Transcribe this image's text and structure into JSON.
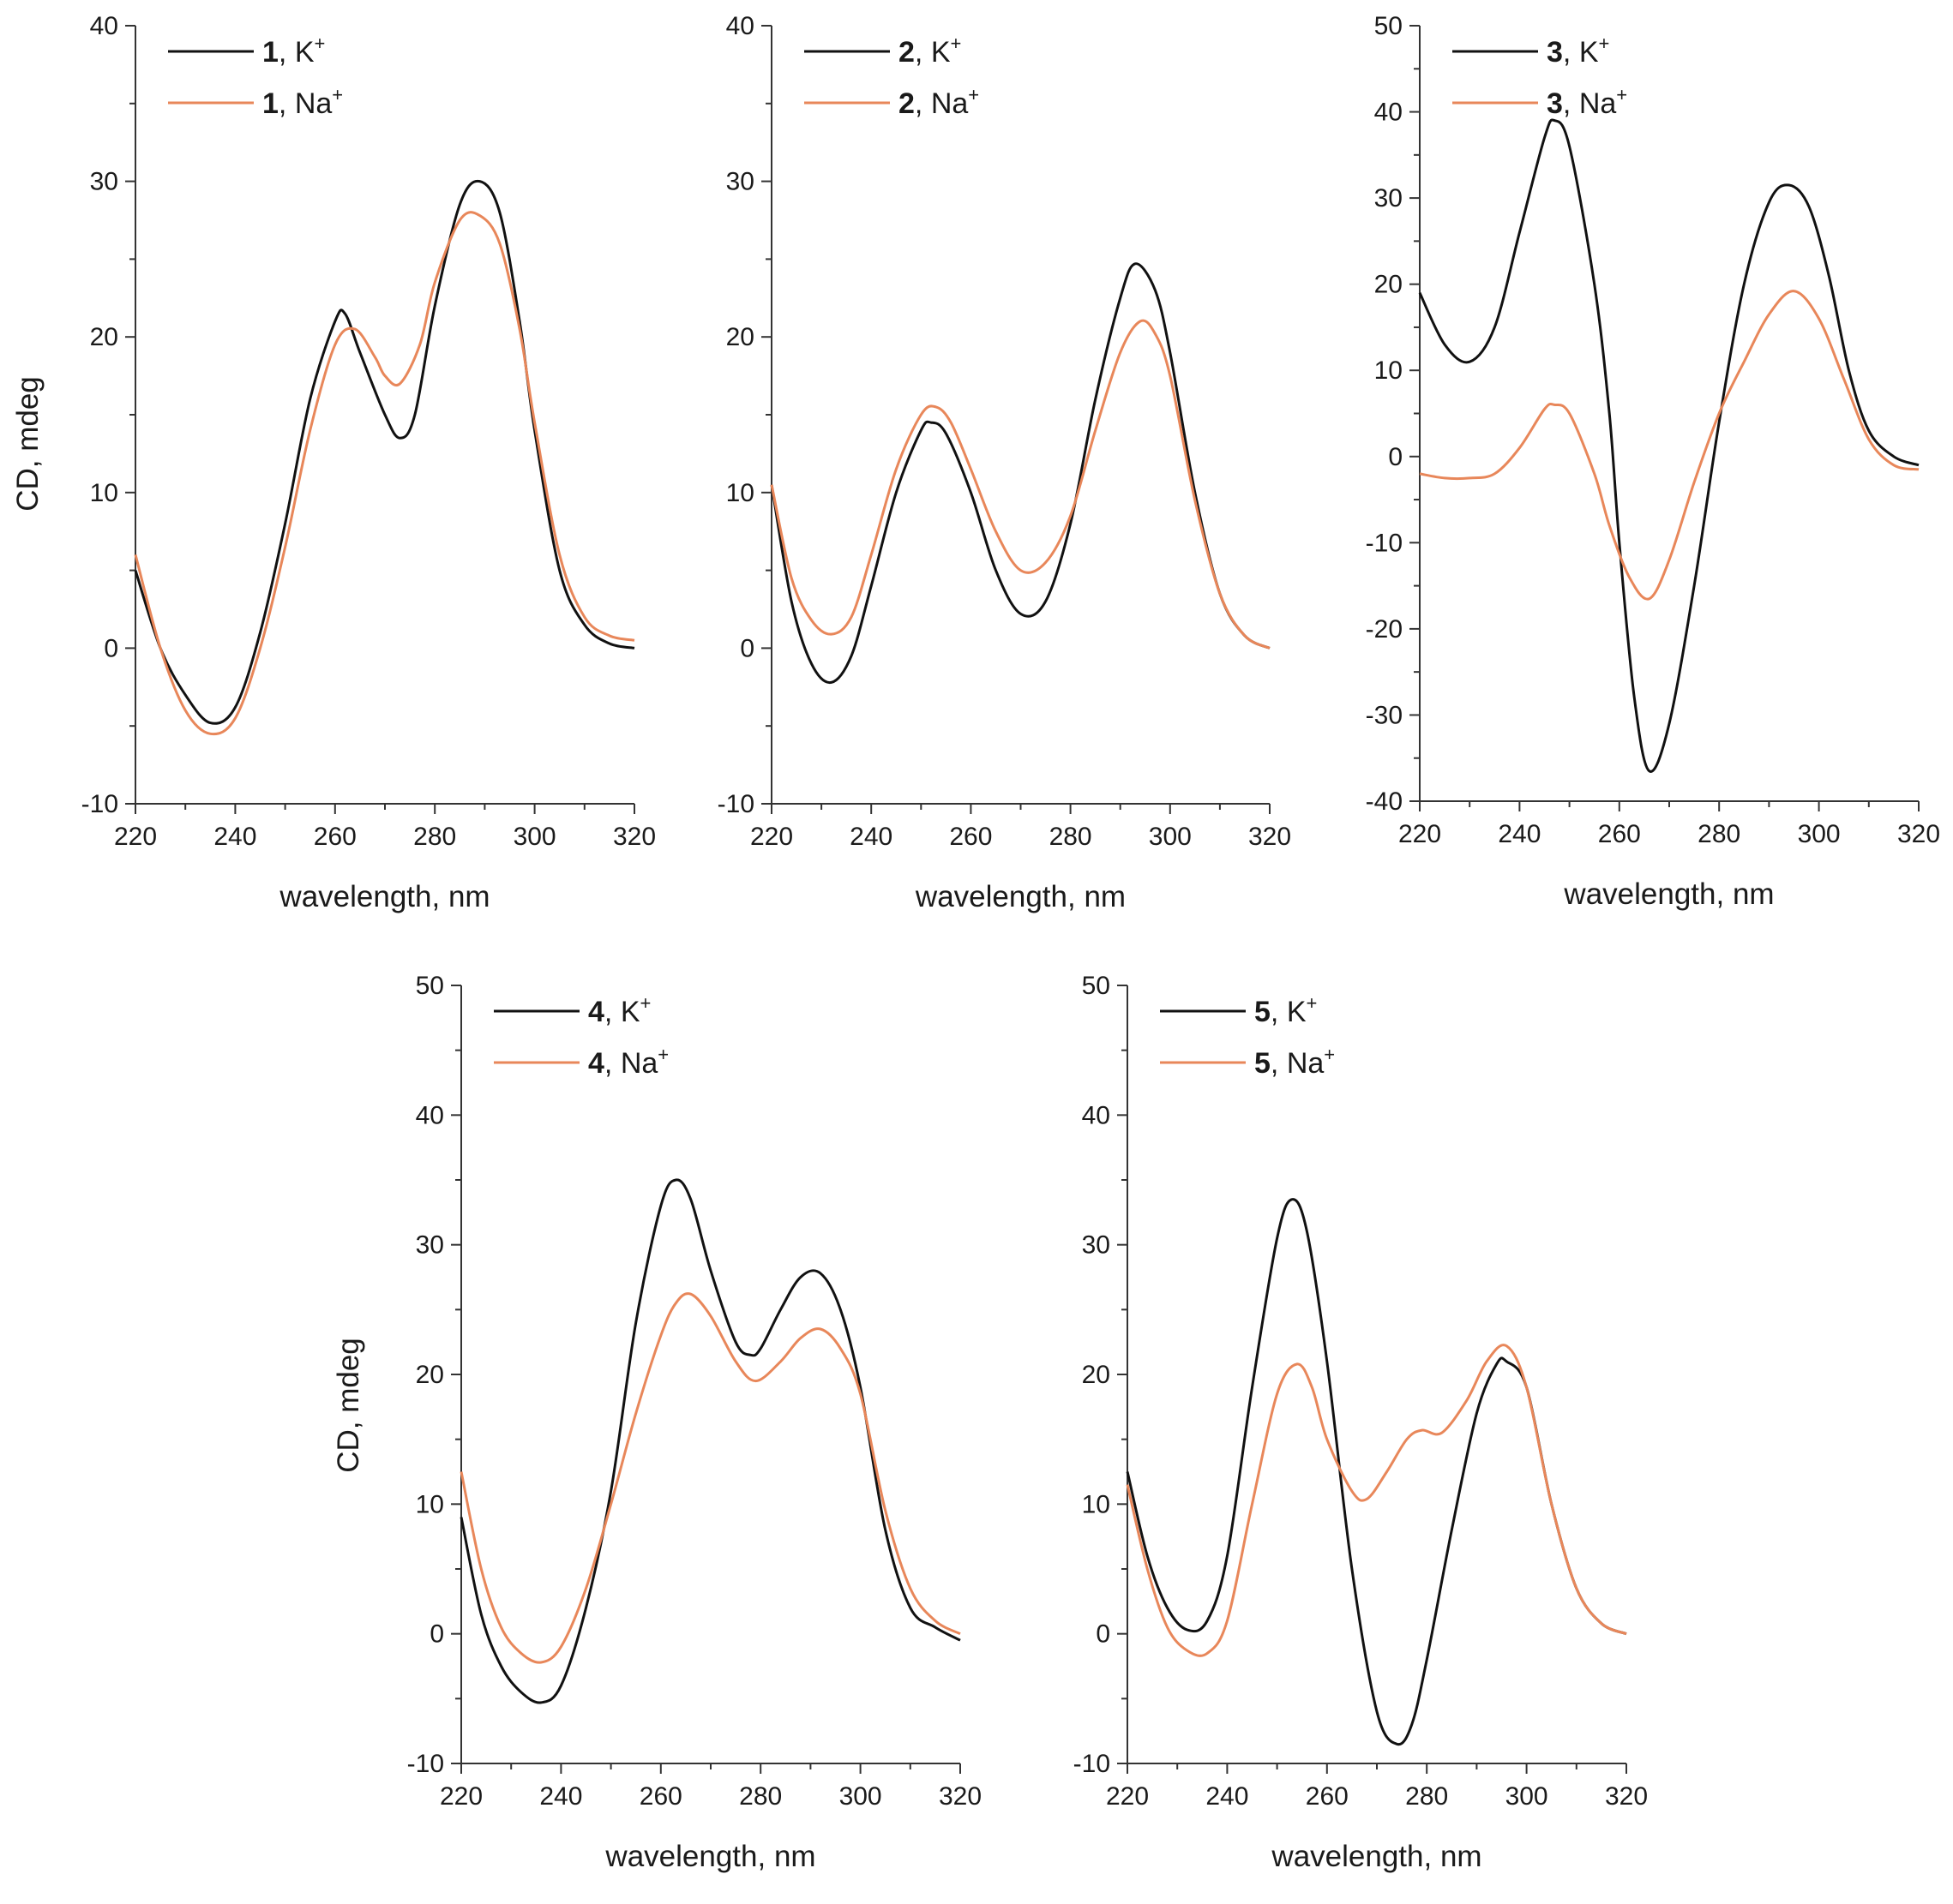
{
  "colors": {
    "k": "#111111",
    "na": "#e8875a",
    "axis": "#333333"
  },
  "chart_data": [
    {
      "type": "line",
      "xlabel": "wavelength, nm",
      "ylabel": "CD, mdeg",
      "xlim": [
        220,
        320
      ],
      "ylim": [
        -10,
        40
      ],
      "xticks": [
        220,
        240,
        260,
        280,
        300,
        320
      ],
      "yticks": [
        -10,
        0,
        10,
        20,
        30,
        40
      ],
      "legend_placement": "top-left",
      "series": [
        {
          "name": "K+",
          "compound": "1",
          "ion": "K",
          "charge": "+",
          "color_key": "k",
          "x": [
            220,
            225,
            230,
            235,
            240,
            245,
            250,
            255,
            260,
            262,
            265,
            270,
            273,
            276,
            280,
            285,
            289,
            293,
            297,
            300,
            305,
            310,
            315,
            320
          ],
          "y": [
            5,
            0,
            -3,
            -4.8,
            -3.8,
            1,
            8,
            16,
            21,
            21.5,
            19,
            15,
            13.5,
            15,
            22,
            28.5,
            30,
            28,
            21,
            14,
            5,
            1.5,
            0.3,
            0
          ]
        },
        {
          "name": "Na+",
          "compound": "1",
          "ion": "Na",
          "charge": "+",
          "color_key": "na",
          "x": [
            220,
            225,
            230,
            235,
            240,
            245,
            250,
            255,
            260,
            264,
            268,
            270,
            273,
            277,
            280,
            285,
            289,
            293,
            297,
            300,
            305,
            310,
            315,
            320
          ],
          "y": [
            6,
            0,
            -4,
            -5.5,
            -4.5,
            0,
            6.5,
            14,
            19.5,
            20.5,
            18.7,
            17.5,
            17,
            19.5,
            23.5,
            27.5,
            27.8,
            26,
            20.5,
            14.5,
            6,
            2,
            0.8,
            0.5
          ]
        }
      ]
    },
    {
      "type": "line",
      "xlabel": "wavelength, nm",
      "ylabel": "",
      "xlim": [
        220,
        320
      ],
      "ylim": [
        -10,
        40
      ],
      "xticks": [
        220,
        240,
        260,
        280,
        300,
        320
      ],
      "yticks": [
        -10,
        0,
        10,
        20,
        30,
        40
      ],
      "legend_placement": "top-left",
      "series": [
        {
          "name": "K+",
          "compound": "2",
          "ion": "K",
          "charge": "+",
          "color_key": "k",
          "x": [
            220,
            224,
            228,
            232,
            236,
            240,
            245,
            250,
            252,
            255,
            260,
            265,
            270,
            275,
            280,
            285,
            290,
            293,
            297,
            300,
            305,
            310,
            315,
            320
          ],
          "y": [
            10.5,
            3,
            -1,
            -2.2,
            -0.5,
            4,
            10,
            14,
            14.5,
            13.8,
            10,
            5,
            2.2,
            3,
            8,
            16,
            22.5,
            24.7,
            23,
            19,
            10,
            3.5,
            0.8,
            0
          ]
        },
        {
          "name": "Na+",
          "compound": "2",
          "ion": "Na",
          "charge": "+",
          "color_key": "na",
          "x": [
            220,
            224,
            228,
            232,
            236,
            240,
            245,
            250,
            253,
            256,
            260,
            265,
            270,
            275,
            280,
            285,
            290,
            294,
            297,
            300,
            305,
            310,
            315,
            320
          ],
          "y": [
            10.5,
            4.5,
            1.8,
            0.9,
            2,
            6,
            11.5,
            15,
            15.5,
            14.5,
            11.5,
            7.5,
            5,
            5.5,
            8.5,
            14,
            19,
            21,
            20.2,
            17.5,
            9.5,
            3.5,
            0.8,
            0
          ]
        }
      ]
    },
    {
      "type": "line",
      "xlabel": "wavelength, nm",
      "ylabel": "",
      "xlim": [
        220,
        320
      ],
      "ylim": [
        -40,
        50
      ],
      "xticks": [
        220,
        240,
        260,
        280,
        300,
        320
      ],
      "yticks": [
        -40,
        -30,
        -20,
        -10,
        0,
        10,
        20,
        30,
        40,
        50
      ],
      "legend_placement": "top-left",
      "series": [
        {
          "name": "K+",
          "compound": "3",
          "ion": "K",
          "charge": "+",
          "color_key": "k",
          "x": [
            220,
            225,
            230,
            235,
            240,
            245,
            247,
            250,
            255,
            258,
            260,
            263,
            266,
            270,
            275,
            280,
            285,
            290,
            294,
            298,
            302,
            306,
            310,
            315,
            320
          ],
          "y": [
            19,
            13,
            11,
            15,
            26,
            37,
            39,
            36,
            20,
            5,
            -10,
            -28,
            -36.5,
            -31,
            -15,
            4,
            20,
            29.5,
            31.5,
            29,
            21,
            10,
            3,
            0,
            -1
          ]
        },
        {
          "name": "Na+",
          "compound": "3",
          "ion": "Na",
          "charge": "+",
          "color_key": "na",
          "x": [
            220,
            225,
            230,
            235,
            240,
            245,
            247,
            250,
            255,
            258,
            262,
            266,
            270,
            275,
            280,
            285,
            290,
            295,
            300,
            305,
            310,
            315,
            320
          ],
          "y": [
            -2,
            -2.5,
            -2.5,
            -2,
            1,
            5.5,
            6,
            5,
            -2,
            -8,
            -14,
            -16.5,
            -12,
            -3,
            5,
            11,
            16.5,
            19.2,
            16,
            9,
            2,
            -1,
            -1.5
          ]
        }
      ]
    },
    {
      "type": "line",
      "xlabel": "wavelength, nm",
      "ylabel": "CD, mdeg",
      "xlim": [
        220,
        320
      ],
      "ylim": [
        -10,
        50
      ],
      "xticks": [
        220,
        240,
        260,
        280,
        300,
        320
      ],
      "yticks": [
        -10,
        0,
        10,
        20,
        30,
        40,
        50
      ],
      "legend_placement": "top-left",
      "series": [
        {
          "name": "K+",
          "compound": "4",
          "ion": "K",
          "charge": "+",
          "color_key": "k",
          "x": [
            220,
            224,
            228,
            232,
            236,
            240,
            245,
            250,
            255,
            260,
            263,
            266,
            270,
            275,
            278,
            280,
            284,
            288,
            292,
            296,
            300,
            305,
            310,
            315,
            320
          ],
          "y": [
            9,
            1.5,
            -2.5,
            -4.5,
            -5.3,
            -4,
            2,
            11,
            24,
            33,
            35,
            33.5,
            28,
            22.5,
            21.5,
            22,
            25,
            27.5,
            27.8,
            25,
            19,
            8,
            2,
            0.5,
            -0.5
          ]
        },
        {
          "name": "Na+",
          "compound": "4",
          "ion": "Na",
          "charge": "+",
          "color_key": "na",
          "x": [
            220,
            224,
            228,
            232,
            236,
            240,
            245,
            250,
            255,
            260,
            263,
            266,
            270,
            275,
            279,
            284,
            288,
            292,
            296,
            300,
            305,
            310,
            315,
            320
          ],
          "y": [
            12.5,
            5,
            0.5,
            -1.5,
            -2.2,
            -1,
            3.5,
            10,
            17,
            23,
            25.5,
            26.2,
            24.5,
            21,
            19.5,
            21,
            22.8,
            23.5,
            22,
            18.5,
            9.5,
            3.5,
            1,
            0
          ]
        }
      ]
    },
    {
      "type": "line",
      "xlabel": "wavelength, nm",
      "ylabel": "",
      "xlim": [
        220,
        320
      ],
      "ylim": [
        -10,
        50
      ],
      "xticks": [
        220,
        240,
        260,
        280,
        300,
        320
      ],
      "yticks": [
        -10,
        0,
        10,
        20,
        30,
        40,
        50
      ],
      "legend_placement": "top-left",
      "series": [
        {
          "name": "K+",
          "compound": "5",
          "ion": "K",
          "charge": "+",
          "color_key": "k",
          "x": [
            220,
            224,
            228,
            232,
            236,
            240,
            245,
            250,
            253,
            256,
            260,
            265,
            270,
            274,
            277,
            280,
            285,
            290,
            294,
            296,
            300,
            305,
            310,
            315,
            320
          ],
          "y": [
            12.5,
            6,
            2,
            0.3,
            1,
            6,
            19,
            30.5,
            33.5,
            31,
            21,
            5,
            -6,
            -8.5,
            -7,
            -2,
            8,
            17,
            20.8,
            21,
            19,
            10,
            3.5,
            0.8,
            0
          ]
        },
        {
          "name": "Na+",
          "compound": "5",
          "ion": "Na",
          "charge": "+",
          "color_key": "na",
          "x": [
            220,
            224,
            228,
            232,
            236,
            240,
            245,
            250,
            254,
            257,
            260,
            265,
            268,
            272,
            276,
            279,
            283,
            288,
            292,
            296,
            300,
            305,
            310,
            315,
            320
          ],
          "y": [
            11.5,
            5,
            0.5,
            -1.3,
            -1.5,
            1,
            10,
            18.5,
            20.8,
            19,
            15,
            11,
            10.4,
            12.5,
            15,
            15.7,
            15.5,
            18,
            21,
            22.2,
            19,
            10,
            3.5,
            0.8,
            0
          ]
        }
      ]
    }
  ]
}
